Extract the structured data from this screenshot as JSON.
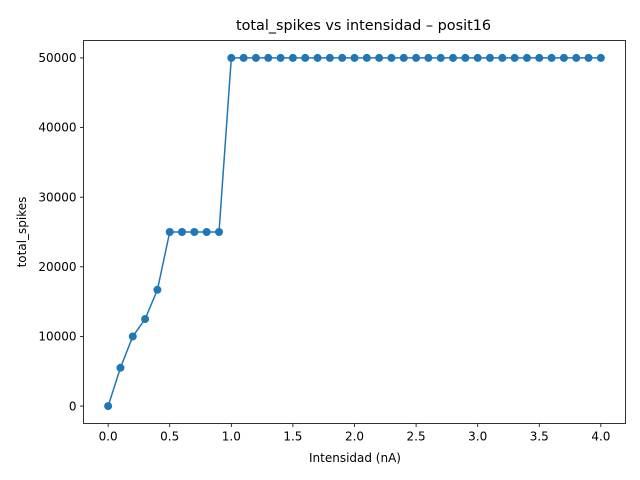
{
  "chart_data": {
    "type": "line",
    "title": "total_spikes vs intensidad – posit16",
    "xlabel": "Intensidad (nA)",
    "ylabel": "total_spikes",
    "xlim": [
      -0.2,
      4.2
    ],
    "ylim": [
      -2500,
      52500
    ],
    "xticks": [
      "0.0",
      "0.5",
      "1.0",
      "1.5",
      "2.0",
      "2.5",
      "3.0",
      "3.5",
      "4.0"
    ],
    "yticks": [
      "0",
      "10000",
      "20000",
      "30000",
      "40000",
      "50000"
    ],
    "grid": false,
    "marker": "circle",
    "colors": {
      "series": "#1f77b4"
    },
    "series": [
      {
        "x": [
          0.0,
          0.1,
          0.2,
          0.3,
          0.4,
          0.5,
          0.6,
          0.7,
          0.8,
          0.9,
          1.0,
          1.1,
          1.2,
          1.3,
          1.4,
          1.5,
          1.6,
          1.7,
          1.8,
          1.9,
          2.0,
          2.1,
          2.2,
          2.3,
          2.4,
          2.5,
          2.6,
          2.7,
          2.8,
          2.9,
          3.0,
          3.1,
          3.2,
          3.3,
          3.4,
          3.5,
          3.6,
          3.7,
          3.8,
          3.9,
          4.0
        ],
        "y": [
          0,
          5500,
          10000,
          12500,
          16700,
          25000,
          25000,
          25000,
          25000,
          25000,
          50000,
          50000,
          50000,
          50000,
          50000,
          50000,
          50000,
          50000,
          50000,
          50000,
          50000,
          50000,
          50000,
          50000,
          50000,
          50000,
          50000,
          50000,
          50000,
          50000,
          50000,
          50000,
          50000,
          50000,
          50000,
          50000,
          50000,
          50000,
          50000,
          50000,
          50000
        ]
      }
    ]
  }
}
